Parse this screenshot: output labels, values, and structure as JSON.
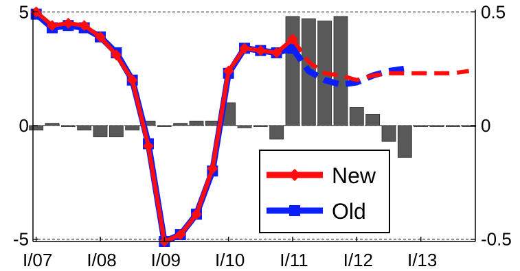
{
  "chart_data": {
    "type": "bar+line",
    "title": "",
    "xlabel": "",
    "ylabel": "",
    "x_tick_labels": [
      "I/07",
      "I/08",
      "I/09",
      "I/10",
      "I/11",
      "I/12",
      "I/13"
    ],
    "left_axis": {
      "ylim": [
        -5.1,
        5.1
      ],
      "ticks": [
        5,
        0,
        -5
      ],
      "tick_labels": [
        "5",
        "0",
        "-5"
      ]
    },
    "right_axis": {
      "ylim": [
        -0.51,
        0.51
      ],
      "ticks": [
        0.5,
        0,
        -0.5
      ],
      "tick_labels": [
        "0.5",
        "0",
        "-0.5"
      ]
    },
    "grid": {
      "dashed_lines_at_left": [
        5,
        0,
        -5
      ]
    },
    "legend": {
      "placement": "lower-middle",
      "entries": [
        "New",
        "Old"
      ]
    },
    "quarters_x": [
      0,
      0.25,
      0.5,
      0.75,
      1,
      1.25,
      1.5,
      1.75,
      2,
      2.25,
      2.5,
      2.75,
      3,
      3.25,
      3.5,
      3.75,
      4,
      4.25,
      4.5,
      4.75,
      5,
      5.25,
      5.5,
      5.75,
      6,
      6.25,
      6.5,
      6.75
    ],
    "bars": {
      "axis": "right",
      "color": "#595959",
      "values": [
        -0.02,
        0.01,
        0.0,
        -0.02,
        -0.05,
        -0.05,
        -0.02,
        0.02,
        0.0,
        0.01,
        0.02,
        0.02,
        0.1,
        -0.01,
        0.0,
        -0.06,
        0.48,
        0.47,
        0.46,
        0.48,
        0.08,
        0.05,
        -0.07,
        -0.14,
        0.0,
        0.0,
        0.0,
        0.0
      ]
    },
    "series": [
      {
        "name": "Old",
        "color": "#0a1eff",
        "marker": "square",
        "axis": "left",
        "solid_to_index": 16,
        "values": [
          4.9,
          4.3,
          4.4,
          4.3,
          3.9,
          3.2,
          2.0,
          -0.8,
          -5.1,
          -4.8,
          -3.9,
          -2.0,
          2.3,
          3.4,
          3.3,
          3.2,
          3.4,
          2.4,
          2.0,
          1.8,
          1.9,
          2.2,
          2.4,
          2.5
        ]
      },
      {
        "name": "New",
        "color": "#ff0c0c",
        "marker": "diamond",
        "axis": "left",
        "solid_to_index": 16,
        "values": [
          5.0,
          4.4,
          4.5,
          4.4,
          3.9,
          3.1,
          2.0,
          -0.9,
          -5.1,
          -4.8,
          -3.9,
          -1.9,
          2.4,
          3.4,
          3.3,
          3.2,
          3.8,
          2.8,
          2.3,
          2.2,
          2.0,
          2.2,
          2.3,
          2.3,
          2.3,
          2.3,
          2.3,
          2.4
        ]
      }
    ]
  }
}
